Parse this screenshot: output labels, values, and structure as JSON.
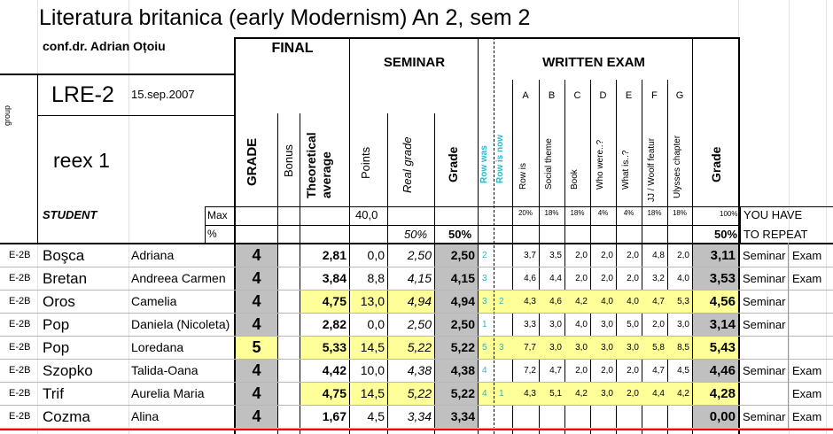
{
  "header": {
    "title": "Literatura britanica (early Modernism) An 2, sem 2",
    "lecturer": "conf.dr. Adrian Oțoiu",
    "group_label": "group",
    "course_code": "LRE-2",
    "date": "15.sep.2007",
    "session": "reex 1",
    "student_label": "STUDENT",
    "max_label": "Max",
    "pct_label": "%"
  },
  "sections": {
    "final": "FINAL",
    "seminar": "SEMINAR",
    "written": "WRITTEN EXAM"
  },
  "columns": {
    "grade": "GRADE",
    "bonus": "Bonus",
    "theoretical": "Theoretical average",
    "points": "Points",
    "real_grade": "Real grade",
    "sem_grade": "Grade",
    "row_was": "Row was",
    "row_is_now": "Row is now",
    "exam_grade": "Grade",
    "repeat_line1": "YOU HAVE",
    "repeat_line2": "TO REPEAT",
    "exam_items": [
      {
        "letter": "A",
        "label": "Row is",
        "weight": "20%"
      },
      {
        "letter": "B",
        "label": "Social theme",
        "weight": "18%"
      },
      {
        "letter": "C",
        "label": "Book",
        "weight": "18%"
      },
      {
        "letter": "D",
        "label": "Who were..?",
        "weight": "4%"
      },
      {
        "letter": "E",
        "label": "What is..?",
        "weight": "4%"
      },
      {
        "letter": "F",
        "label": "JJ / Woolf featur",
        "weight": "18%"
      },
      {
        "letter": "G",
        "label": "Ulysses chapter",
        "weight": "18%"
      }
    ]
  },
  "max_row": {
    "points_max": "40,0",
    "exam_weight_total": "100%"
  },
  "pct_row": {
    "real_grade_pct": "50%",
    "sem_grade_pct": "50%",
    "exam_grade_pct": "50%"
  },
  "students": [
    {
      "group": "E-2B",
      "last": "Boşca",
      "first": "Adriana",
      "grade": "4",
      "theo": "2,81",
      "points": "0,0",
      "real": "2,50",
      "sem": "2,50",
      "was": "2",
      "now": "",
      "items": [
        "3,7",
        "3,5",
        "2,0",
        "2,0",
        "2,0",
        "4,8",
        "2,0"
      ],
      "exam": "3,11",
      "rep1": "Seminar",
      "rep2": "Exam"
    },
    {
      "group": "E-2B",
      "last": "Bretan",
      "first": "Andreea Carmen",
      "grade": "4",
      "theo": "3,84",
      "points": "8,8",
      "real": "4,15",
      "sem": "4,15",
      "was": "3",
      "now": "",
      "items": [
        "4,6",
        "4,4",
        "2,0",
        "2,0",
        "2,0",
        "3,2",
        "4,0"
      ],
      "exam": "3,53",
      "rep1": "Seminar",
      "rep2": "Exam"
    },
    {
      "group": "E-2B",
      "last": "Oros",
      "first": "Camelia",
      "grade": "4",
      "theo": "4,75",
      "points": "13,0",
      "real": "4,94",
      "sem": "4,94",
      "was": "3",
      "now": "2",
      "items": [
        "4,3",
        "4,6",
        "4,2",
        "4,0",
        "4,0",
        "4,7",
        "5,3"
      ],
      "exam": "4,56",
      "rep1": "Seminar",
      "rep2": ""
    },
    {
      "group": "E-2B",
      "last": "Pop",
      "first": "Daniela (Nicoleta)",
      "grade": "4",
      "theo": "2,82",
      "points": "0,0",
      "real": "2,50",
      "sem": "2,50",
      "was": "1",
      "now": "",
      "items": [
        "3,3",
        "3,0",
        "4,0",
        "3,0",
        "5,0",
        "2,0",
        "3,0"
      ],
      "exam": "3,14",
      "rep1": "Seminar",
      "rep2": ""
    },
    {
      "group": "E-2B",
      "last": "Pop",
      "first": "Loredana",
      "grade": "5",
      "theo": "5,33",
      "points": "14,5",
      "real": "5,22",
      "sem": "5,22",
      "was": "5",
      "now": "3",
      "items": [
        "7,7",
        "3,0",
        "3,0",
        "3,0",
        "3,0",
        "5,8",
        "8,5"
      ],
      "exam": "5,43",
      "rep1": "",
      "rep2": ""
    },
    {
      "group": "E-2B",
      "last": "Szopko",
      "first": "Talida-Oana",
      "grade": "4",
      "theo": "4,42",
      "points": "10,0",
      "real": "4,38",
      "sem": "4,38",
      "was": "4",
      "now": "",
      "items": [
        "7,2",
        "4,7",
        "2,0",
        "2,0",
        "2,0",
        "4,7",
        "4,5"
      ],
      "exam": "4,46",
      "rep1": "Seminar",
      "rep2": "Exam"
    },
    {
      "group": "E-2B",
      "last": "Trif",
      "first": "Aurelia Maria",
      "grade": "4",
      "theo": "4,75",
      "points": "14,5",
      "real": "5,22",
      "sem": "5,22",
      "was": "4",
      "now": "1",
      "items": [
        "4,3",
        "5,1",
        "4,2",
        "3,0",
        "2,0",
        "4,4",
        "4,2"
      ],
      "exam": "4,28",
      "rep1": "",
      "rep2": "Exam"
    },
    {
      "group": "E-2B",
      "last": "Cozma",
      "first": "Alina",
      "grade": "4",
      "theo": "1,67",
      "points": "4,5",
      "real": "3,34",
      "sem": "3,34",
      "was": "",
      "now": "",
      "items": [
        "",
        "",
        "",
        "",
        "",
        "",
        ""
      ],
      "exam": "0,00",
      "rep1": "Seminar",
      "rep2": "Exam"
    }
  ],
  "colors": {
    "grey": "#c0c0c0",
    "yellow": "#ffff99",
    "teal": "#2cb7c9",
    "red": "#ff0000"
  }
}
